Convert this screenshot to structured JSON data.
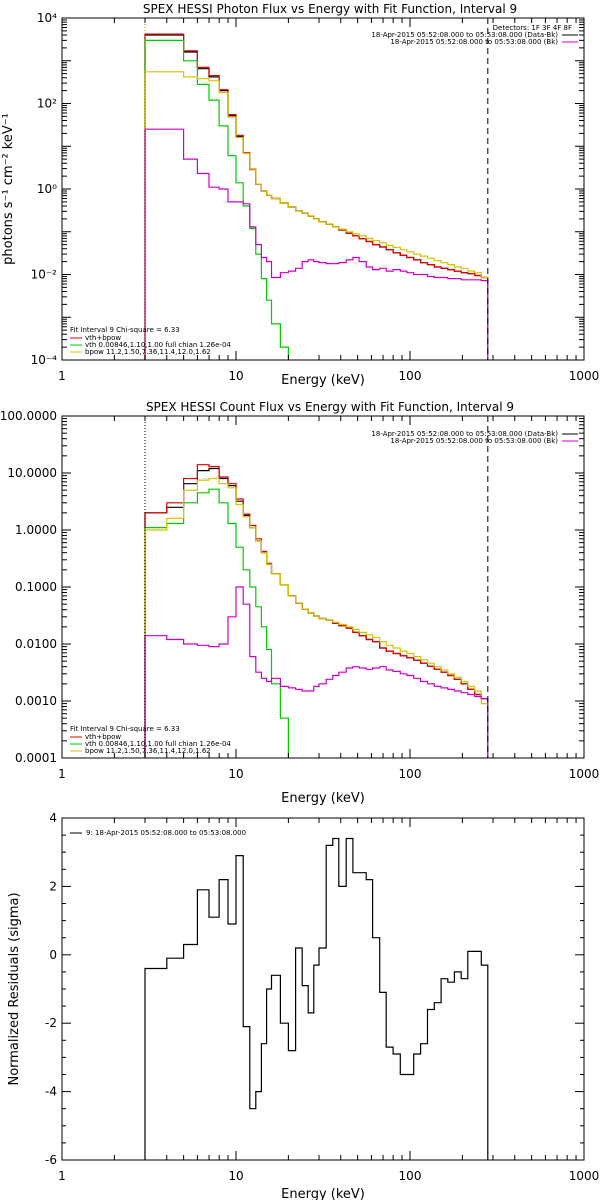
{
  "colors": {
    "total": "#000000",
    "model": "#e00000",
    "vth": "#00cc00",
    "bpow": "#d4c400",
    "bk": "#cc00cc",
    "fit_boundary": "#d08000"
  },
  "chart_data": [
    {
      "type": "line",
      "step": true,
      "title": "SPEX HESSI Photon Flux vs Energy with Fit Function, Interval 9",
      "xlabel": "Energy (keV)",
      "ylabel": "photons s⁻¹ cm⁻² keV⁻¹",
      "xscale": "log",
      "yscale": "log",
      "xlim": [
        1,
        1000
      ],
      "ylim": [
        0.0001,
        10000
      ],
      "xticks": [
        1,
        10,
        100,
        1000
      ],
      "xtick_labels": [
        "1",
        "10",
        "100",
        "1000"
      ],
      "yticks": [
        0.0001,
        0.01,
        1,
        100,
        10000
      ],
      "ytick_labels": [
        "10⁻⁴",
        "10⁻²",
        "10⁰",
        "10²",
        "10⁴"
      ],
      "vlines": [
        {
          "x": 3,
          "style": "dotted",
          "color": "#d08000"
        },
        {
          "x": 280,
          "style": "dashed",
          "color": "#000000"
        }
      ],
      "legend_top_right": [
        "Detectors: 1F 3F 4F 8F",
        "18-Apr-2015 05:52:08.000 to 05:53:08.000 (Data-Bk)",
        "18-Apr-2015 05:52:08.000 to 05:53:08.000 (Bk)"
      ],
      "legend_bottom_left": [
        "Fit Interval  9   Chi-square = 6.33",
        "vth+bpow",
        "vth 0.00846,1.10,1.00  full chian 1.26e-04",
        "bpow  11.2,1.50,7.36,11.4,12.0,1.62"
      ],
      "bin_edges": [
        3,
        4,
        5,
        6,
        7,
        8,
        9,
        10,
        11,
        12,
        13,
        14,
        15,
        16,
        18,
        20,
        22,
        24,
        26,
        28,
        30,
        33,
        36,
        39,
        43,
        47,
        51,
        56,
        61,
        67,
        73,
        80,
        88,
        96,
        105,
        115,
        126,
        138,
        151,
        165,
        180,
        197,
        215,
        235,
        257,
        280
      ],
      "series": [
        {
          "name": "total",
          "color": "#000000",
          "values": [
            4000,
            4000,
            1600,
            650,
            420,
            200,
            52,
            17,
            7,
            2.8,
            1.3,
            0.9,
            0.72,
            0.6,
            0.47,
            0.38,
            0.31,
            0.27,
            0.23,
            0.2,
            0.17,
            0.15,
            0.13,
            0.11,
            0.092,
            0.08,
            0.069,
            0.059,
            0.05,
            0.044,
            0.038,
            0.032,
            0.028,
            0.025,
            0.022,
            0.019,
            0.017,
            0.015,
            0.014,
            0.013,
            0.012,
            0.011,
            0.0105,
            0.0095,
            0.0085
          ]
        },
        {
          "name": "vth+bpow",
          "color": "#e00000",
          "values": [
            4200,
            4200,
            1700,
            700,
            450,
            210,
            55,
            18,
            7,
            2.9,
            1.3,
            0.9,
            0.72,
            0.6,
            0.47,
            0.38,
            0.31,
            0.27,
            0.23,
            0.2,
            0.17,
            0.15,
            0.13,
            0.11,
            0.092,
            0.08,
            0.069,
            0.059,
            0.05,
            0.044,
            0.038,
            0.032,
            0.028,
            0.025,
            0.022,
            0.019,
            0.017,
            0.015,
            0.014,
            0.013,
            0.012,
            0.011,
            0.0105,
            0.0095,
            0.0085
          ]
        },
        {
          "name": "vth",
          "color": "#00cc00",
          "values": [
            3000,
            3000,
            1000,
            280,
            120,
            30,
            6,
            1.4,
            0.4,
            0.12,
            0.03,
            0.008,
            0.0025,
            0.0007,
            0.0002,
            5e-05
          ]
        },
        {
          "name": "bpow",
          "color": "#d4c400",
          "values": [
            550,
            550,
            420,
            380,
            340,
            180,
            48,
            16,
            6.8,
            2.8,
            1.3,
            0.9,
            0.72,
            0.6,
            0.47,
            0.38,
            0.31,
            0.27,
            0.23,
            0.2,
            0.17,
            0.15,
            0.13,
            0.115,
            0.1,
            0.09,
            0.08,
            0.07,
            0.062,
            0.055,
            0.048,
            0.043,
            0.038,
            0.034,
            0.03,
            0.027,
            0.024,
            0.021,
            0.019,
            0.017,
            0.015,
            0.014,
            0.012,
            0.011,
            0.0085
          ]
        },
        {
          "name": "Bk",
          "color": "#cc00cc",
          "values": [
            25,
            25,
            5,
            2.3,
            1.1,
            1,
            0.5,
            0.5,
            0.45,
            0.13,
            0.05,
            0.025,
            0.02,
            0.0085,
            0.011,
            0.012,
            0.014,
            0.02,
            0.022,
            0.02,
            0.019,
            0.018,
            0.018,
            0.019,
            0.022,
            0.025,
            0.02,
            0.015,
            0.013,
            0.014,
            0.012,
            0.013,
            0.012,
            0.011,
            0.01,
            0.01,
            0.009,
            0.0085,
            0.0085,
            0.008,
            0.008,
            0.0075,
            0.0075,
            0.0075,
            0.0072
          ]
        }
      ]
    },
    {
      "type": "line",
      "step": true,
      "title": "SPEX HESSI Count Flux vs Energy with Fit Function, Interval 9",
      "xlabel": "Energy (keV)",
      "ylabel": "",
      "xscale": "log",
      "yscale": "log",
      "xlim": [
        1,
        1000
      ],
      "ylim": [
        0.0001,
        100
      ],
      "xticks": [
        1,
        10,
        100,
        1000
      ],
      "xtick_labels": [
        "1",
        "10",
        "100",
        "1000"
      ],
      "yticks": [
        0.0001,
        0.001,
        0.01,
        0.1,
        1,
        10,
        100
      ],
      "ytick_labels": [
        "0.0001",
        "0.0010",
        "0.0100",
        "0.1000",
        "1.0000",
        "10.0000",
        "100.0000"
      ],
      "vlines": [
        {
          "x": 3,
          "style": "dotted",
          "color": "#000000"
        },
        {
          "x": 280,
          "style": "dashed",
          "color": "#000000"
        }
      ],
      "legend_top_right": [
        "18-Apr-2015 05:52:08.000 to 05:53:08.000 (Data-Bk)",
        "18-Apr-2015 05:52:08.000 to 05:53:08.000 (Bk)"
      ],
      "legend_bottom_left": [
        "Fit Interval  9   Chi-square = 6.33",
        "vth+bpow",
        "vth 0.00846,1.10,1.00  full chian 1.26e-04",
        "bpow  11.2,1.50,7.36,11.4,12.0,1.62"
      ],
      "bin_edges": [
        3,
        4,
        5,
        6,
        7,
        8,
        9,
        10,
        11,
        12,
        13,
        14,
        15,
        16,
        18,
        20,
        22,
        24,
        26,
        28,
        30,
        33,
        36,
        39,
        43,
        47,
        51,
        56,
        61,
        67,
        73,
        80,
        88,
        96,
        105,
        115,
        126,
        138,
        151,
        165,
        180,
        197,
        215,
        235,
        257,
        280
      ],
      "series": [
        {
          "name": "total",
          "color": "#000000",
          "values": [
            2,
            2.5,
            6.5,
            11,
            12,
            8,
            6,
            3.2,
            1.8,
            1.1,
            0.65,
            0.4,
            0.25,
            0.17,
            0.11,
            0.07,
            0.052,
            0.041,
            0.035,
            0.031,
            0.028,
            0.026,
            0.023,
            0.021,
            0.019,
            0.016,
            0.014,
            0.012,
            0.011,
            0.0085,
            0.0075,
            0.0068,
            0.0062,
            0.0057,
            0.0052,
            0.0046,
            0.0041,
            0.0036,
            0.0032,
            0.0028,
            0.0024,
            0.002,
            0.0016,
            0.0013,
            0.0011
          ]
        },
        {
          "name": "vth+bpow",
          "color": "#e00000",
          "values": [
            2,
            3,
            8,
            14,
            13,
            8.5,
            6.5,
            3.5,
            1.9,
            1.2,
            0.7,
            0.42,
            0.26,
            0.17,
            0.11,
            0.07,
            0.052,
            0.041,
            0.035,
            0.031,
            0.028,
            0.026,
            0.023,
            0.021,
            0.019,
            0.016,
            0.014,
            0.012,
            0.011,
            0.0085,
            0.0075,
            0.0068,
            0.0062,
            0.0057,
            0.0052,
            0.0046,
            0.0041,
            0.0036,
            0.0032,
            0.0028,
            0.0024,
            0.002,
            0.0016,
            0.0013,
            0.0011
          ]
        },
        {
          "name": "vth",
          "color": "#00cc00",
          "values": [
            1.1,
            1.3,
            3,
            4.5,
            5.2,
            3,
            1.3,
            0.5,
            0.2,
            0.1,
            0.045,
            0.02,
            0.008,
            0.002,
            0.0005,
            5e-05
          ]
        },
        {
          "name": "bpow",
          "color": "#d4c400",
          "values": [
            1,
            1.6,
            5,
            7.5,
            8,
            6.5,
            5.5,
            2.8,
            1.7,
            1.1,
            0.65,
            0.4,
            0.25,
            0.17,
            0.11,
            0.07,
            0.052,
            0.041,
            0.035,
            0.031,
            0.028,
            0.026,
            0.024,
            0.022,
            0.02,
            0.018,
            0.016,
            0.0145,
            0.013,
            0.011,
            0.0095,
            0.0085,
            0.0075,
            0.0068,
            0.006,
            0.0053,
            0.0046,
            0.004,
            0.0035,
            0.003,
            0.0026,
            0.0022,
            0.0018,
            0.0015,
            0.0009
          ]
        },
        {
          "name": "Bk",
          "color": "#cc00cc",
          "values": [
            0.014,
            0.012,
            0.01,
            0.0095,
            0.009,
            0.01,
            0.03,
            0.1,
            0.05,
            0.006,
            0.0032,
            0.0025,
            0.0022,
            0.0025,
            0.0018,
            0.0017,
            0.0016,
            0.0015,
            0.0015,
            0.0018,
            0.002,
            0.0024,
            0.0028,
            0.0032,
            0.0038,
            0.004,
            0.0038,
            0.0036,
            0.0038,
            0.004,
            0.0035,
            0.0033,
            0.003,
            0.0028,
            0.0025,
            0.0022,
            0.002,
            0.0018,
            0.0017,
            0.0016,
            0.0015,
            0.0014,
            0.0013,
            0.0012,
            0.0011
          ]
        }
      ]
    },
    {
      "type": "line",
      "step": true,
      "title": "",
      "xlabel": "Energy (keV)",
      "ylabel": "Normalized Residuals (sigma)",
      "xscale": "log",
      "yscale": "linear",
      "xlim": [
        1,
        1000
      ],
      "ylim": [
        -6,
        4
      ],
      "xticks": [
        1,
        10,
        100,
        1000
      ],
      "xtick_labels": [
        "1",
        "10",
        "100",
        "1000"
      ],
      "yticks": [
        -6,
        -4,
        -2,
        0,
        2,
        4
      ],
      "ytick_labels": [
        "-6",
        "-4",
        "-2",
        "0",
        "2",
        "4"
      ],
      "legend_top_left": [
        "9: 18-Apr-2015 05:52:08.000 to 05:53:08.000"
      ],
      "bin_edges": [
        3,
        4,
        5,
        6,
        7,
        8,
        9,
        10,
        11,
        12,
        13,
        14,
        15,
        16,
        18,
        20,
        22,
        24,
        26,
        28,
        30,
        33,
        36,
        39,
        43,
        47,
        51,
        56,
        61,
        67,
        73,
        80,
        88,
        96,
        105,
        115,
        126,
        138,
        151,
        165,
        180,
        197,
        215,
        235,
        257,
        280
      ],
      "series": [
        {
          "name": "residuals",
          "color": "#000000",
          "values": [
            -0.4,
            -0.1,
            0.3,
            1.9,
            1.1,
            2.2,
            0.9,
            2.9,
            -2.1,
            -4.5,
            -4.0,
            -2.6,
            -1.0,
            -0.6,
            -2.0,
            -2.8,
            0.2,
            -0.9,
            -1.7,
            -0.3,
            0.2,
            3.2,
            3.4,
            2.0,
            3.4,
            2.4,
            2.4,
            2.2,
            0.5,
            -1.1,
            -2.7,
            -2.9,
            -3.5,
            -3.5,
            -2.9,
            -2.6,
            -1.6,
            -1.4,
            -0.7,
            -0.8,
            -0.5,
            -0.7,
            0.1,
            0.1,
            -0.3
          ]
        }
      ]
    }
  ]
}
